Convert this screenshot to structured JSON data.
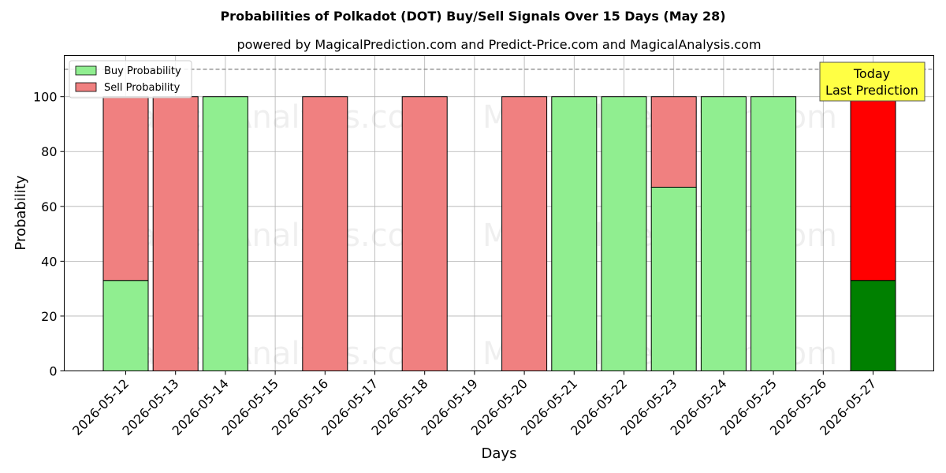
{
  "chart_data": {
    "type": "bar",
    "title": "Probabilities of Polkadot (DOT) Buy/Sell Signals Over 15 Days (May 28)",
    "subtitle": "powered by MagicalPrediction.com and Predict-Price.com and MagicalAnalysis.com",
    "xlabel": "Days",
    "ylabel": "Probability",
    "ylim": [
      0,
      115
    ],
    "yticks": [
      0,
      20,
      40,
      60,
      80,
      100
    ],
    "reference_line": 110,
    "grid": true,
    "legend_position": "top-left",
    "categories": [
      "2026-05-12",
      "2026-05-13",
      "2026-05-14",
      "2026-05-15",
      "2026-05-16",
      "2026-05-17",
      "2026-05-18",
      "2026-05-19",
      "2026-05-20",
      "2026-05-21",
      "2026-05-22",
      "2026-05-23",
      "2026-05-24",
      "2026-05-25",
      "2026-05-26",
      "2026-05-27"
    ],
    "series": [
      {
        "name": "Buy Probability",
        "color": "#90ee90",
        "values": [
          33,
          0,
          100,
          null,
          0,
          null,
          0,
          null,
          0,
          100,
          100,
          67,
          100,
          100,
          null,
          33
        ]
      },
      {
        "name": "Sell Probability",
        "color": "#f08080",
        "values": [
          67,
          100,
          0,
          null,
          100,
          null,
          100,
          null,
          100,
          0,
          0,
          33,
          0,
          0,
          null,
          67
        ]
      }
    ],
    "highlight": {
      "category": "2026-05-27",
      "buy_color": "#008000",
      "sell_color": "#ff0000"
    },
    "annotation": {
      "line1": "Today",
      "line2": "Last Prediction",
      "color": "#ffff44"
    },
    "watermarks": [
      "MagicalAnalysis.com",
      "MagicalPrediction.com"
    ]
  }
}
